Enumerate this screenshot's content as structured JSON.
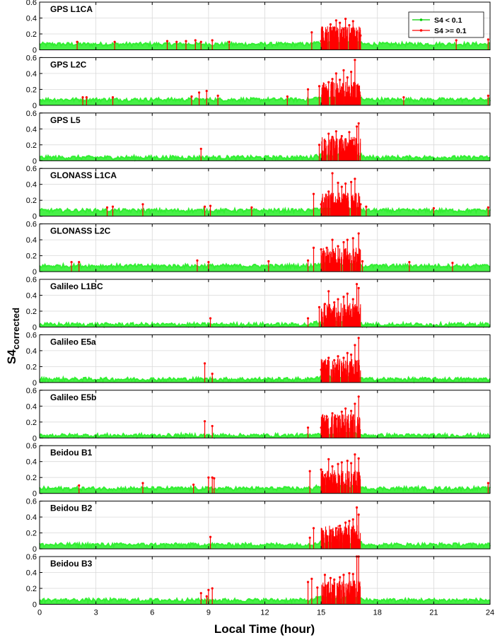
{
  "figure": {
    "ylabel_main": "S4",
    "ylabel_sub": "corrected",
    "xlabel": "Local Time (hour)"
  },
  "legend": {
    "entries": [
      {
        "label": "S4 < 0.1",
        "color": "#00cc00"
      },
      {
        "label": "S4 >= 0.1",
        "color": "#ff0000"
      }
    ]
  },
  "colors": {
    "below": "#33ee33",
    "above": "#ff0000",
    "grid": "#d9d9d9",
    "axis": "#000000"
  },
  "chart_data": {
    "type": "scatter",
    "threshold": 0.1,
    "xlim": [
      0,
      24
    ],
    "ylim": [
      0,
      0.6
    ],
    "x_ticks": [
      0,
      3,
      6,
      9,
      12,
      15,
      18,
      21,
      24
    ],
    "y_ticks": [
      0,
      0.2,
      0.4,
      0.6
    ],
    "x_tick_labels": [
      "0",
      "3",
      "6",
      "9",
      "12",
      "15",
      "18",
      "21",
      "24"
    ],
    "y_tick_labels": [
      "0",
      "0.2",
      "0.4",
      "0.6"
    ],
    "panels": [
      {
        "title": "GPS L1CA",
        "baseline": 0.07,
        "red_points": [
          [
            2.0,
            0.1
          ],
          [
            4.0,
            0.1
          ],
          [
            6.8,
            0.11
          ],
          [
            7.3,
            0.1
          ],
          [
            7.8,
            0.11
          ],
          [
            8.3,
            0.12
          ],
          [
            8.6,
            0.1
          ],
          [
            9.2,
            0.12
          ],
          [
            10.1,
            0.1
          ],
          [
            14.5,
            0.22
          ],
          [
            15.0,
            0.11
          ],
          [
            15.3,
            0.2
          ],
          [
            15.5,
            0.32
          ],
          [
            15.7,
            0.28
          ],
          [
            15.8,
            0.37
          ],
          [
            16.0,
            0.34
          ],
          [
            16.2,
            0.26
          ],
          [
            16.3,
            0.39
          ],
          [
            16.5,
            0.31
          ],
          [
            16.7,
            0.36
          ],
          [
            16.9,
            0.22
          ],
          [
            17.1,
            0.18
          ],
          [
            22.2,
            0.12
          ],
          [
            23.9,
            0.13
          ]
        ],
        "show_legend": true
      },
      {
        "title": "GPS L2C",
        "baseline": 0.07,
        "red_points": [
          [
            2.3,
            0.1
          ],
          [
            2.5,
            0.1
          ],
          [
            3.9,
            0.1
          ],
          [
            8.1,
            0.11
          ],
          [
            8.5,
            0.16
          ],
          [
            8.9,
            0.18
          ],
          [
            9.5,
            0.12
          ],
          [
            13.2,
            0.11
          ],
          [
            14.3,
            0.2
          ],
          [
            14.9,
            0.24
          ],
          [
            15.2,
            0.18
          ],
          [
            15.4,
            0.29
          ],
          [
            15.6,
            0.33
          ],
          [
            15.8,
            0.4
          ],
          [
            16.0,
            0.32
          ],
          [
            16.2,
            0.44
          ],
          [
            16.4,
            0.35
          ],
          [
            16.6,
            0.42
          ],
          [
            16.8,
            0.57
          ],
          [
            17.0,
            0.14
          ],
          [
            19.4,
            0.1
          ],
          [
            23.9,
            0.12
          ]
        ],
        "show_legend": false
      },
      {
        "title": "GPS L5",
        "baseline": 0.04,
        "red_points": [
          [
            8.6,
            0.15
          ],
          [
            14.9,
            0.2
          ],
          [
            15.2,
            0.25
          ],
          [
            15.4,
            0.34
          ],
          [
            15.6,
            0.3
          ],
          [
            15.8,
            0.37
          ],
          [
            16.1,
            0.31
          ],
          [
            16.3,
            0.27
          ],
          [
            16.5,
            0.36
          ],
          [
            16.7,
            0.26
          ],
          [
            16.9,
            0.43
          ],
          [
            17.0,
            0.47
          ]
        ],
        "show_legend": false
      },
      {
        "title": "GLONASS L1CA",
        "baseline": 0.07,
        "red_points": [
          [
            3.6,
            0.11
          ],
          [
            3.9,
            0.12
          ],
          [
            5.5,
            0.15
          ],
          [
            8.8,
            0.12
          ],
          [
            9.1,
            0.13
          ],
          [
            11.3,
            0.11
          ],
          [
            14.6,
            0.28
          ],
          [
            15.0,
            0.15
          ],
          [
            15.4,
            0.31
          ],
          [
            15.6,
            0.54
          ],
          [
            15.9,
            0.42
          ],
          [
            16.1,
            0.37
          ],
          [
            16.3,
            0.41
          ],
          [
            16.6,
            0.43
          ],
          [
            16.8,
            0.47
          ],
          [
            17.1,
            0.15
          ],
          [
            17.4,
            0.12
          ],
          [
            21.0,
            0.1
          ],
          [
            23.9,
            0.11
          ]
        ],
        "show_legend": false
      },
      {
        "title": "GLONASS L2C",
        "baseline": 0.07,
        "red_points": [
          [
            1.7,
            0.12
          ],
          [
            2.1,
            0.12
          ],
          [
            8.4,
            0.14
          ],
          [
            9.0,
            0.12
          ],
          [
            12.2,
            0.13
          ],
          [
            14.3,
            0.14
          ],
          [
            14.6,
            0.3
          ],
          [
            15.0,
            0.28
          ],
          [
            15.3,
            0.3
          ],
          [
            15.6,
            0.4
          ],
          [
            15.9,
            0.32
          ],
          [
            16.2,
            0.37
          ],
          [
            16.4,
            0.4
          ],
          [
            16.7,
            0.42
          ],
          [
            17.0,
            0.48
          ],
          [
            17.2,
            0.13
          ],
          [
            19.7,
            0.12
          ],
          [
            22.0,
            0.11
          ]
        ],
        "show_legend": false
      },
      {
        "title": "Galileo L1BC",
        "baseline": 0.03,
        "red_points": [
          [
            9.1,
            0.11
          ],
          [
            14.3,
            0.11
          ],
          [
            14.9,
            0.25
          ],
          [
            15.2,
            0.29
          ],
          [
            15.4,
            0.45
          ],
          [
            15.7,
            0.31
          ],
          [
            15.9,
            0.35
          ],
          [
            16.2,
            0.38
          ],
          [
            16.4,
            0.42
          ],
          [
            16.7,
            0.35
          ],
          [
            16.9,
            0.54
          ],
          [
            17.0,
            0.49
          ]
        ],
        "show_legend": false
      },
      {
        "title": "Galileo E5a",
        "baseline": 0.04,
        "red_points": [
          [
            8.8,
            0.24
          ],
          [
            9.2,
            0.11
          ],
          [
            15.0,
            0.16
          ],
          [
            15.2,
            0.26
          ],
          [
            15.4,
            0.31
          ],
          [
            15.7,
            0.28
          ],
          [
            15.9,
            0.33
          ],
          [
            16.2,
            0.31
          ],
          [
            16.4,
            0.37
          ],
          [
            16.6,
            0.35
          ],
          [
            16.8,
            0.47
          ],
          [
            17.0,
            0.56
          ]
        ],
        "show_legend": false
      },
      {
        "title": "Galileo E5b",
        "baseline": 0.03,
        "red_points": [
          [
            8.8,
            0.21
          ],
          [
            9.2,
            0.15
          ],
          [
            14.3,
            0.13
          ],
          [
            15.0,
            0.13
          ],
          [
            15.3,
            0.27
          ],
          [
            15.6,
            0.31
          ],
          [
            15.8,
            0.24
          ],
          [
            16.1,
            0.33
          ],
          [
            16.3,
            0.37
          ],
          [
            16.6,
            0.34
          ],
          [
            16.8,
            0.43
          ],
          [
            17.0,
            0.52
          ]
        ],
        "show_legend": false
      },
      {
        "title": "Beidou B1",
        "baseline": 0.06,
        "red_points": [
          [
            2.1,
            0.1
          ],
          [
            5.5,
            0.13
          ],
          [
            8.2,
            0.11
          ],
          [
            9.0,
            0.2
          ],
          [
            9.2,
            0.2
          ],
          [
            9.3,
            0.19
          ],
          [
            14.4,
            0.28
          ],
          [
            15.0,
            0.3
          ],
          [
            15.2,
            0.23
          ],
          [
            15.4,
            0.43
          ],
          [
            15.6,
            0.34
          ],
          [
            15.9,
            0.37
          ],
          [
            16.1,
            0.39
          ],
          [
            16.4,
            0.41
          ],
          [
            16.6,
            0.38
          ],
          [
            16.8,
            0.49
          ],
          [
            17.0,
            0.44
          ],
          [
            23.9,
            0.13
          ]
        ],
        "show_legend": false
      },
      {
        "title": "Beidou B2",
        "baseline": 0.05,
        "red_points": [
          [
            9.1,
            0.15
          ],
          [
            14.4,
            0.14
          ],
          [
            14.6,
            0.26
          ],
          [
            15.3,
            0.16
          ],
          [
            15.5,
            0.23
          ],
          [
            15.8,
            0.26
          ],
          [
            16.0,
            0.29
          ],
          [
            16.3,
            0.33
          ],
          [
            16.5,
            0.35
          ],
          [
            16.7,
            0.37
          ],
          [
            16.9,
            0.52
          ],
          [
            17.0,
            0.43
          ]
        ],
        "show_legend": false
      },
      {
        "title": "Beidou B3",
        "baseline": 0.05,
        "red_points": [
          [
            8.6,
            0.14
          ],
          [
            8.9,
            0.1
          ],
          [
            9.0,
            0.18
          ],
          [
            9.2,
            0.2
          ],
          [
            14.3,
            0.28
          ],
          [
            14.5,
            0.32
          ],
          [
            14.8,
            0.21
          ],
          [
            15.2,
            0.37
          ],
          [
            15.5,
            0.33
          ],
          [
            15.7,
            0.31
          ],
          [
            16.0,
            0.34
          ],
          [
            16.2,
            0.37
          ],
          [
            16.5,
            0.39
          ],
          [
            16.7,
            0.38
          ],
          [
            16.9,
            0.6
          ],
          [
            17.0,
            0.6
          ]
        ],
        "show_legend": false
      }
    ]
  }
}
